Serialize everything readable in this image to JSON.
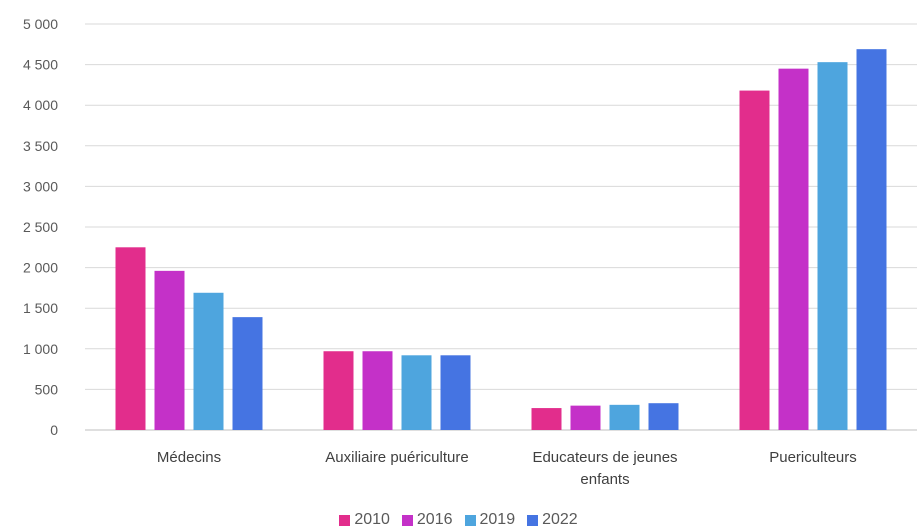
{
  "chart_data": {
    "type": "bar",
    "categories": [
      "Médecins",
      "Auxiliaire puériculture",
      "Educateurs de jeunes enfants",
      "Puericulteurs"
    ],
    "category_lines": [
      [
        "Médecins"
      ],
      [
        "Auxiliaire puériculture"
      ],
      [
        "Educateurs de jeunes",
        "enfants"
      ],
      [
        "Puericulteurs"
      ]
    ],
    "series": [
      {
        "name": "2010",
        "color": "#E22D8C",
        "values": [
          2250,
          970,
          270,
          4180
        ]
      },
      {
        "name": "2016",
        "color": "#C431C8",
        "values": [
          1960,
          970,
          300,
          4450
        ]
      },
      {
        "name": "2019",
        "color": "#4EA5DE",
        "values": [
          1690,
          920,
          310,
          4530
        ]
      },
      {
        "name": "2022",
        "color": "#4574E2",
        "values": [
          1390,
          920,
          330,
          4690
        ]
      }
    ],
    "ylim": [
      0,
      5000
    ],
    "yticks": [
      0,
      500,
      1000,
      1500,
      2000,
      2500,
      3000,
      3500,
      4000,
      4500,
      5000
    ],
    "ytick_labels": [
      "0",
      "500",
      "1 000",
      "1 500",
      "2 000",
      "2 500",
      "3 000",
      "3 500",
      "4 000",
      "4 500",
      "5 000"
    ],
    "grid": true,
    "legend": "bottom"
  }
}
